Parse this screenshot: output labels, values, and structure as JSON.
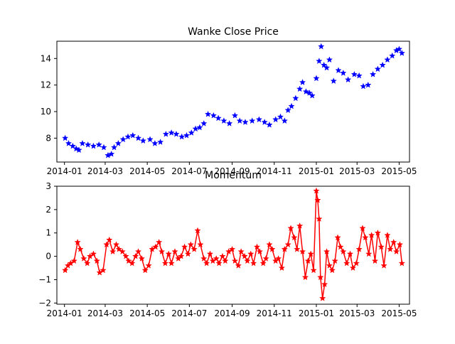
{
  "chart_data": [
    {
      "type": "line",
      "title": "Wanke Close Price",
      "xlabel": "",
      "ylabel": "",
      "marker": "star",
      "line": false,
      "color": "#0000ff",
      "x_ticks": [
        "2014-01",
        "2014-03",
        "2014-05",
        "2014-07",
        "2014-09",
        "2014-11",
        "2015-01",
        "2015-03",
        "2015-05"
      ],
      "y_ticks": [
        "8",
        "10",
        "12",
        "14"
      ],
      "xlim": [
        "2013-12-21",
        "2015-05-16"
      ],
      "ylim": [
        6.2,
        15.3
      ],
      "series": [
        {
          "x": [
            "2014-01-02",
            "2014-01-07",
            "2014-01-13",
            "2014-01-18",
            "2014-01-22",
            "2014-01-27",
            "2014-02-04",
            "2014-02-12",
            "2014-02-20",
            "2014-02-27",
            "2014-03-05",
            "2014-03-10",
            "2014-03-14",
            "2014-03-20",
            "2014-03-27",
            "2014-04-03",
            "2014-04-10",
            "2014-04-18",
            "2014-04-25",
            "2014-05-05",
            "2014-05-12",
            "2014-05-20",
            "2014-05-28",
            "2014-06-05",
            "2014-06-12",
            "2014-06-20",
            "2014-06-27",
            "2014-07-04",
            "2014-07-10",
            "2014-07-16",
            "2014-07-22",
            "2014-07-28",
            "2014-08-05",
            "2014-08-12",
            "2014-08-20",
            "2014-08-28",
            "2014-09-05",
            "2014-09-12",
            "2014-09-20",
            "2014-09-30",
            "2014-10-10",
            "2014-10-18",
            "2014-10-25",
            "2014-11-03",
            "2014-11-10",
            "2014-11-16",
            "2014-11-21",
            "2014-11-26",
            "2014-12-02",
            "2014-12-08",
            "2014-12-12",
            "2014-12-17",
            "2014-12-22",
            "2014-12-26",
            "2015-01-01",
            "2015-01-05",
            "2015-01-08",
            "2015-01-12",
            "2015-01-16",
            "2015-01-20",
            "2015-01-26",
            "2015-02-02",
            "2015-02-09",
            "2015-02-16",
            "2015-02-25",
            "2015-03-04",
            "2015-03-10",
            "2015-03-17",
            "2015-03-24",
            "2015-03-31",
            "2015-04-07",
            "2015-04-14",
            "2015-04-21",
            "2015-04-27",
            "2015-05-01",
            "2015-05-05"
          ],
          "values": [
            8.0,
            7.6,
            7.4,
            7.2,
            7.1,
            7.6,
            7.5,
            7.4,
            7.5,
            7.3,
            6.7,
            6.8,
            7.3,
            7.6,
            7.9,
            8.1,
            8.2,
            8.0,
            7.8,
            7.9,
            7.6,
            7.7,
            8.3,
            8.4,
            8.3,
            8.1,
            8.2,
            8.4,
            8.7,
            8.8,
            9.1,
            9.8,
            9.7,
            9.5,
            9.3,
            9.1,
            9.7,
            9.3,
            9.2,
            9.3,
            9.4,
            9.2,
            9.0,
            9.4,
            9.6,
            9.3,
            10.1,
            10.4,
            11.0,
            11.7,
            12.2,
            11.5,
            11.4,
            11.2,
            12.5,
            13.8,
            14.9,
            13.5,
            13.3,
            13.9,
            12.3,
            13.1,
            12.9,
            12.4,
            12.8,
            12.7,
            11.9,
            12.0,
            12.8,
            13.2,
            13.5,
            13.9,
            14.2,
            14.6,
            14.7,
            14.4
          ]
        }
      ]
    },
    {
      "type": "line",
      "title": "Momentum",
      "xlabel": "",
      "ylabel": "",
      "marker": "star",
      "line": true,
      "color": "#ff0000",
      "x_ticks": [
        "2014-01",
        "2014-03",
        "2014-05",
        "2014-07",
        "2014-09",
        "2014-11",
        "2015-01",
        "2015-03",
        "2015-05"
      ],
      "y_ticks": [
        "−2",
        "−1",
        "0",
        "1",
        "2",
        "3"
      ],
      "xlim": [
        "2013-12-21",
        "2015-05-16"
      ],
      "ylim": [
        -2.05,
        3.0
      ],
      "series": [
        {
          "x": [
            "2014-01-02",
            "2014-01-06",
            "2014-01-10",
            "2014-01-15",
            "2014-01-20",
            "2014-01-24",
            "2014-01-29",
            "2014-02-03",
            "2014-02-07",
            "2014-02-12",
            "2014-02-17",
            "2014-02-21",
            "2014-02-26",
            "2014-03-03",
            "2014-03-07",
            "2014-03-12",
            "2014-03-17",
            "2014-03-21",
            "2014-03-26",
            "2014-03-31",
            "2014-04-04",
            "2014-04-09",
            "2014-04-14",
            "2014-04-18",
            "2014-04-23",
            "2014-04-28",
            "2014-05-03",
            "2014-05-08",
            "2014-05-13",
            "2014-05-18",
            "2014-05-22",
            "2014-05-27",
            "2014-06-01",
            "2014-06-05",
            "2014-06-10",
            "2014-06-15",
            "2014-06-19",
            "2014-06-24",
            "2014-06-29",
            "2014-07-03",
            "2014-07-08",
            "2014-07-13",
            "2014-07-17",
            "2014-07-22",
            "2014-07-26",
            "2014-07-31",
            "2014-08-04",
            "2014-08-09",
            "2014-08-13",
            "2014-08-18",
            "2014-08-22",
            "2014-08-27",
            "2014-09-01",
            "2014-09-05",
            "2014-09-10",
            "2014-09-14",
            "2014-09-19",
            "2014-09-23",
            "2014-09-28",
            "2014-10-02",
            "2014-10-07",
            "2014-10-11",
            "2014-10-16",
            "2014-10-20",
            "2014-10-25",
            "2014-10-29",
            "2014-11-03",
            "2014-11-07",
            "2014-11-12",
            "2014-11-16",
            "2014-11-21",
            "2014-11-25",
            "2014-11-30",
            "2014-12-04",
            "2014-12-08",
            "2014-12-12",
            "2014-12-16",
            "2014-12-20",
            "2014-12-24",
            "2014-12-28",
            "2015-01-01",
            "2015-01-03",
            "2015-01-05",
            "2015-01-07",
            "2015-01-10",
            "2015-01-13",
            "2015-01-16",
            "2015-01-20",
            "2015-01-24",
            "2015-01-28",
            "2015-02-01",
            "2015-02-05",
            "2015-02-09",
            "2015-02-14",
            "2015-02-19",
            "2015-02-23",
            "2015-02-28",
            "2015-03-04",
            "2015-03-09",
            "2015-03-13",
            "2015-03-18",
            "2015-03-22",
            "2015-03-27",
            "2015-03-31",
            "2015-04-05",
            "2015-04-09",
            "2015-04-14",
            "2015-04-18",
            "2015-04-23",
            "2015-04-27",
            "2015-05-02",
            "2015-05-05"
          ],
          "values": [
            -0.6,
            -0.4,
            -0.3,
            -0.2,
            0.6,
            0.3,
            -0.1,
            -0.3,
            0.0,
            0.1,
            -0.2,
            -0.7,
            -0.6,
            0.5,
            0.7,
            0.2,
            0.5,
            0.3,
            0.2,
            0.0,
            -0.2,
            -0.3,
            0.0,
            0.2,
            -0.1,
            -0.6,
            -0.4,
            0.3,
            0.4,
            0.6,
            0.2,
            -0.3,
            0.1,
            -0.3,
            0.2,
            -0.1,
            0.0,
            0.4,
            0.1,
            0.5,
            0.3,
            1.1,
            0.5,
            -0.1,
            -0.3,
            0.1,
            -0.2,
            -0.1,
            -0.3,
            0.0,
            -0.2,
            0.2,
            0.3,
            -0.2,
            -0.4,
            0.2,
            0.0,
            -0.2,
            0.1,
            -0.3,
            0.4,
            0.2,
            -0.3,
            -0.1,
            0.5,
            0.3,
            -0.2,
            -0.1,
            -0.5,
            0.3,
            0.5,
            1.2,
            0.8,
            0.3,
            1.3,
            0.2,
            -0.9,
            -0.2,
            0.1,
            -0.6,
            2.8,
            2.4,
            1.6,
            -0.9,
            -1.8,
            -1.2,
            0.2,
            -0.4,
            -0.6,
            -0.2,
            0.8,
            0.4,
            0.2,
            -0.3,
            0.1,
            -0.5,
            -0.3,
            0.3,
            1.2,
            0.8,
            0.1,
            0.9,
            -0.2,
            1.0,
            0.4,
            -0.4,
            0.9,
            0.3,
            0.6,
            0.2,
            0.5,
            -0.3
          ]
        }
      ]
    }
  ]
}
